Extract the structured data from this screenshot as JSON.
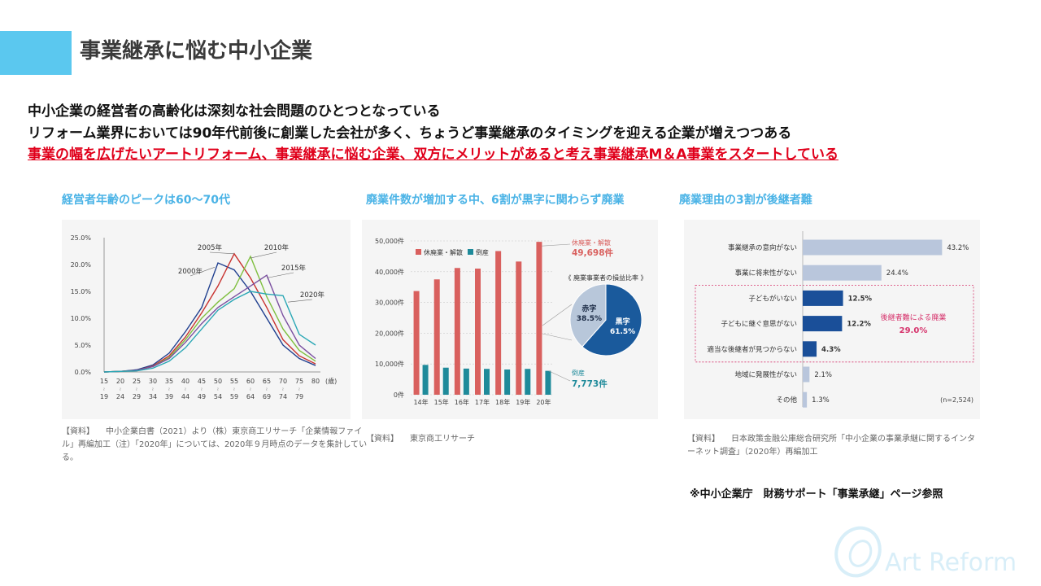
{
  "title": "事業継承に悩む中小企業",
  "headlines": {
    "line1": "中小企業の経営者の高齢化は深刻な社会問題のひとつとなっている",
    "line2": "リフォーム業界においては90年代前後に創業した会社が多く、ちょうど事業継承のタイミングを迎える企業が増えつつある",
    "line3": "事業の幅を広げたいアートリフォーム、事業継承に悩む企業、双方にメリットがあると考え事業継承M＆A事業をスタートしている"
  },
  "subtitles": {
    "chart1": "経営者年齢のピークは60〜70代",
    "chart2": "廃業件数が増加する中、6割が黒字に関わらず廃業",
    "chart3": "廃業理由の3割が後継者難"
  },
  "colors": {
    "accent": "#5bc8ef",
    "red": "#e0001b",
    "subtitle": "#4ab3e6",
    "bar_red": "#d9605e",
    "bar_teal": "#1e8a9a",
    "pie_blue": "#1a5a9c",
    "pie_light": "#b8c7da",
    "hbar_dark": "#1a4f99",
    "hbar_light": "#b9c6dc",
    "magenta": "#d6336c"
  },
  "chart_data": [
    {
      "type": "line",
      "title": "経営者年齢のピークは60〜70代",
      "xlabel": "(歳)",
      "categories_top": [
        "15",
        "20",
        "25",
        "30",
        "35",
        "40",
        "45",
        "50",
        "55",
        "60",
        "65",
        "70",
        "75",
        "80"
      ],
      "categories_bottom": [
        "19",
        "24",
        "29",
        "34",
        "39",
        "44",
        "49",
        "54",
        "59",
        "64",
        "69",
        "74",
        "79",
        ""
      ],
      "yticks": [
        "25.0%",
        "20.0%",
        "15.0%",
        "10.0%",
        "5.0%",
        "0.0%"
      ],
      "ylim": [
        0,
        25
      ],
      "series": [
        {
          "name": "2000年",
          "color": "#1f3f8f",
          "values": [
            0,
            0.1,
            0.4,
            1.3,
            3.5,
            7.5,
            12,
            20.3,
            19,
            15,
            10,
            5,
            2.5,
            1.2
          ]
        },
        {
          "name": "2005年",
          "color": "#c8322f",
          "values": [
            0,
            0.1,
            0.3,
            1.1,
            3,
            6.5,
            11,
            16,
            22,
            17.5,
            12,
            6,
            3,
            1.5
          ]
        },
        {
          "name": "2010年",
          "color": "#7fbf3f",
          "values": [
            0,
            0.1,
            0.3,
            1,
            2.7,
            6,
            10,
            13,
            15.5,
            21.5,
            14,
            8,
            4,
            2
          ]
        },
        {
          "name": "2015年",
          "color": "#7a4fa0",
          "values": [
            0,
            0.1,
            0.3,
            1,
            2.5,
            5.5,
            9,
            12,
            14,
            16,
            18,
            10.5,
            5,
            2.5
          ]
        },
        {
          "name": "2020年",
          "color": "#2aa7b5",
          "values": [
            0,
            0.1,
            0.2,
            0.7,
            2,
            4.5,
            8,
            11.5,
            13.5,
            15,
            14.5,
            14.2,
            7,
            5
          ]
        }
      ]
    },
    {
      "type": "bar",
      "title": "廃業件数が増加する中、6割が黒字に関わらず廃業",
      "categories": [
        "14年",
        "15年",
        "16年",
        "17年",
        "18年",
        "19年",
        "20年"
      ],
      "yticks": [
        "50,000件",
        "40,000件",
        "30,000件",
        "20,000件",
        "10,000件",
        "0件"
      ],
      "ylim": [
        0,
        50000
      ],
      "series": [
        {
          "name": "休廃業・解散",
          "values": [
            33700,
            37500,
            41200,
            41000,
            46700,
            43300,
            49698
          ]
        },
        {
          "name": "倒産",
          "values": [
            9700,
            8800,
            8500,
            8400,
            8200,
            8400,
            7773
          ]
        }
      ],
      "label_kyuhaigyo_name": "休廃業・解散",
      "label_kyuhaigyo_value": "49,698件",
      "label_tosan_name": "倒産",
      "label_tosan_value": "7,773件",
      "pie": {
        "title": "《 廃業事業者の損益比率 》",
        "slices": [
          {
            "name": "黒字",
            "value": 61.5,
            "label": "61.5%"
          },
          {
            "name": "赤字",
            "value": 38.5,
            "label": "38.5%"
          }
        ]
      }
    },
    {
      "type": "bar",
      "orientation": "horizontal",
      "title": "廃業理由の3割が後継者難",
      "categories": [
        "事業継承の意向がない",
        "事業に将来性がない",
        "子どもがいない",
        "子どもに継ぐ意思がない",
        "適当な後継者が見つからない",
        "地域に発展性がない",
        "その他"
      ],
      "values": [
        43.2,
        24.4,
        12.5,
        12.2,
        4.3,
        2.1,
        1.3
      ],
      "labels": [
        "43.2%",
        "24.4%",
        "12.5%",
        "12.2%",
        "4.3%",
        "2.1%",
        "1.3%"
      ],
      "highlighted": [
        false,
        false,
        true,
        true,
        true,
        false,
        false
      ],
      "xlim": [
        0,
        45
      ],
      "group_label": "後継者難による廃業",
      "group_value": "29.0%",
      "n_label": "(n=2,524)"
    }
  ],
  "sources": {
    "s1_label": "【資料】",
    "s1_text": "中小企業白書（2021）より（株）東京商工リサーチ「企業情報ファイル」再編加工（注）「2020年」については、2020年９月時点のデータを集計している。",
    "s2_label": "【資料】",
    "s2_text": "東京商工リサーチ",
    "s3_label": "【資料】",
    "s3_text": "日本政策金融公庫総合研究所「中小企業の事業承継に関するインターネット調査」（2020年）再編加工"
  },
  "footnote": "※中小企業庁　財務サポート「事業承継」ページ参照",
  "logo": "Art Reform"
}
